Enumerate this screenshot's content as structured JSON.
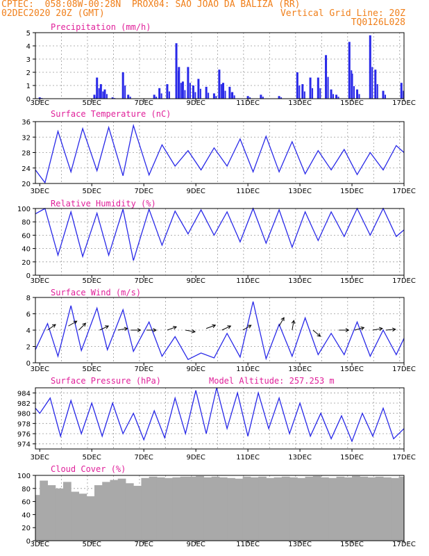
{
  "header": {
    "line1_left": "CPTEC:  058:08W-00:28N  PROX04: SAO JOAO DA BALIZA (RR)",
    "line2_left": "02DEC2020 20Z (GMT)",
    "line2_right": "Vertical Grid Line: 20Z",
    "line3_right": "TQ0126L028"
  },
  "colors": {
    "header": "#f07f1a",
    "title": "#e0209a",
    "line": "#2828e8",
    "cloud": "#a9a9a9"
  },
  "chart_data": [
    {
      "type": "bar",
      "title": "Precipitation (mm/h)",
      "ylim": [
        0,
        5
      ],
      "yticks": [
        0,
        1,
        2,
        3,
        4,
        5
      ],
      "x_ticks": [
        "3DEC",
        "5DEC",
        "7DEC",
        "9DEC",
        "11DEC",
        "13DEC",
        "15DEC",
        "17DEC"
      ],
      "x_range_days": [
        2.833,
        17.0
      ],
      "points": [
        [
          3.0,
          0.1
        ],
        [
          5.1,
          0.3
        ],
        [
          5.2,
          1.6
        ],
        [
          5.35,
          1.1
        ],
        [
          5.5,
          0.7
        ],
        [
          5.8,
          0.1
        ],
        [
          6.2,
          2.0
        ],
        [
          6.4,
          0.3
        ],
        [
          7.4,
          0.3
        ],
        [
          7.6,
          0.8
        ],
        [
          7.9,
          1.1
        ],
        [
          8.25,
          4.2
        ],
        [
          8.35,
          2.4
        ],
        [
          8.5,
          1.3
        ],
        [
          8.7,
          2.4
        ],
        [
          8.9,
          1.0
        ],
        [
          9.1,
          1.5
        ],
        [
          9.4,
          0.9
        ],
        [
          9.7,
          0.4
        ],
        [
          9.9,
          2.2
        ],
        [
          10.05,
          1.2
        ],
        [
          10.3,
          0.9
        ],
        [
          10.4,
          0.5
        ],
        [
          11.0,
          0.2
        ],
        [
          11.5,
          0.3
        ],
        [
          12.2,
          0.2
        ],
        [
          12.9,
          2.0
        ],
        [
          13.1,
          1.1
        ],
        [
          13.4,
          1.6
        ],
        [
          13.7,
          1.6
        ],
        [
          14.0,
          3.3
        ],
        [
          14.2,
          0.7
        ],
        [
          14.4,
          0.3
        ],
        [
          14.9,
          4.3
        ],
        [
          15.0,
          1.9
        ],
        [
          15.2,
          0.7
        ],
        [
          15.7,
          4.8
        ],
        [
          15.9,
          2.2
        ],
        [
          16.2,
          0.6
        ],
        [
          16.9,
          1.2
        ]
      ]
    },
    {
      "type": "line",
      "title": "Surface Temperature (nC)",
      "ylim": [
        20,
        36
      ],
      "yticks": [
        20,
        24,
        28,
        32,
        36
      ],
      "x_ticks": [
        "3DEC",
        "5DEC",
        "7DEC",
        "9DEC",
        "11DEC",
        "13DEC",
        "15DEC",
        "17DEC"
      ],
      "x_range_days": [
        2.833,
        17.0
      ],
      "x": [
        2.833,
        3.2,
        3.7,
        4.2,
        4.65,
        5.2,
        5.65,
        6.2,
        6.6,
        7.2,
        7.7,
        8.2,
        8.7,
        9.2,
        9.7,
        10.2,
        10.7,
        11.2,
        11.7,
        12.2,
        12.7,
        13.2,
        13.7,
        14.2,
        14.7,
        15.2,
        15.7,
        16.2,
        16.7,
        17.0
      ],
      "values": [
        23.5,
        20.2,
        33.5,
        23.0,
        34.2,
        23.3,
        34.5,
        22.0,
        35.0,
        22.2,
        30.0,
        24.5,
        28.5,
        23.5,
        29.2,
        24.5,
        31.5,
        23.0,
        32.2,
        23.0,
        30.8,
        22.5,
        28.5,
        23.5,
        28.8,
        22.3,
        28.0,
        23.5,
        29.8,
        28.0
      ]
    },
    {
      "type": "line",
      "title": "Relative Humidity (%)",
      "ylim": [
        0,
        100
      ],
      "yticks": [
        0,
        20,
        40,
        60,
        80,
        100
      ],
      "x_ticks": [
        "3DEC",
        "5DEC",
        "7DEC",
        "9DEC",
        "11DEC",
        "13DEC",
        "15DEC",
        "17DEC"
      ],
      "x_range_days": [
        2.833,
        17.0
      ],
      "x": [
        2.833,
        3.2,
        3.7,
        4.2,
        4.65,
        5.2,
        5.65,
        6.2,
        6.6,
        7.2,
        7.7,
        8.2,
        8.7,
        9.2,
        9.7,
        10.2,
        10.7,
        11.2,
        11.7,
        12.2,
        12.7,
        13.2,
        13.7,
        14.2,
        14.7,
        15.2,
        15.7,
        16.2,
        16.7,
        17.0
      ],
      "values": [
        92,
        100,
        30,
        95,
        28,
        93,
        30,
        99,
        22,
        99,
        45,
        96,
        62,
        98,
        60,
        95,
        50,
        100,
        48,
        98,
        42,
        95,
        52,
        95,
        58,
        100,
        60,
        100,
        58,
        68
      ]
    },
    {
      "type": "line",
      "title": "Surface Wind (m/s)",
      "ylim": [
        0,
        8
      ],
      "yticks": [
        0,
        2,
        4,
        6,
        8
      ],
      "x_ticks": [
        "3DEC",
        "5DEC",
        "7DEC",
        "9DEC",
        "11DEC",
        "13DEC",
        "15DEC",
        "17DEC"
      ],
      "x_range_days": [
        2.833,
        17.0
      ],
      "x": [
        2.833,
        3.3,
        3.7,
        4.2,
        4.6,
        5.2,
        5.6,
        6.2,
        6.6,
        7.2,
        7.7,
        8.2,
        8.7,
        9.2,
        9.7,
        10.2,
        10.7,
        11.2,
        11.7,
        12.2,
        12.7,
        13.2,
        13.7,
        14.2,
        14.7,
        15.2,
        15.7,
        16.2,
        16.7,
        17.0
      ],
      "values": [
        1.6,
        4.8,
        0.8,
        7.0,
        1.5,
        6.7,
        1.6,
        6.5,
        1.4,
        5.0,
        0.8,
        3.2,
        0.4,
        1.2,
        0.6,
        3.6,
        0.7,
        7.5,
        0.5,
        4.7,
        0.8,
        5.5,
        1.0,
        3.6,
        1.0,
        5.0,
        0.8,
        4.0,
        1.0,
        3.0
      ]
    },
    {
      "type": "line",
      "title": "Surface Pressure (hPa)",
      "annotation": "Model Altitude: 257.253 m",
      "ylim": [
        973,
        985
      ],
      "yticks": [
        974,
        976,
        978,
        980,
        982,
        984
      ],
      "x_ticks": [
        "3DEC",
        "5DEC",
        "7DEC",
        "9DEC",
        "11DEC",
        "13DEC",
        "15DEC",
        "17DEC"
      ],
      "x_range_days": [
        2.833,
        17.0
      ],
      "x": [
        2.833,
        3.0,
        3.4,
        3.8,
        4.2,
        4.6,
        5.0,
        5.4,
        5.8,
        6.2,
        6.6,
        7.0,
        7.4,
        7.8,
        8.2,
        8.6,
        9.0,
        9.4,
        9.8,
        10.2,
        10.6,
        11.0,
        11.4,
        11.8,
        12.2,
        12.6,
        13.0,
        13.4,
        13.8,
        14.2,
        14.6,
        15.0,
        15.4,
        15.8,
        16.2,
        16.6,
        17.0
      ],
      "values": [
        981,
        980,
        983,
        975.5,
        982.5,
        976,
        982,
        975.5,
        982,
        976,
        980,
        974.8,
        980.5,
        975.2,
        983,
        976,
        984.5,
        976,
        985,
        977,
        984,
        975.5,
        984,
        977,
        983,
        976,
        982,
        975.5,
        980,
        975,
        979.5,
        974.5,
        980,
        975.5,
        981,
        975,
        977
      ]
    },
    {
      "type": "bar",
      "title": "Cloud Cover (%)",
      "ylim": [
        0,
        100
      ],
      "yticks": [
        0,
        20,
        40,
        60,
        80,
        100
      ],
      "x_ticks": [
        "3DEC",
        "5DEC",
        "7DEC",
        "9DEC",
        "11DEC",
        "13DEC",
        "15DEC",
        "17DEC"
      ],
      "x_range_days": [
        2.833,
        17.0
      ],
      "x": [
        2.833,
        3.0,
        3.3,
        3.6,
        3.9,
        4.2,
        4.5,
        4.8,
        5.1,
        5.4,
        5.7,
        6.0,
        6.3,
        6.6,
        6.9,
        7.2,
        7.5,
        7.8,
        8.1,
        8.4,
        8.7,
        9.0,
        9.3,
        9.6,
        9.9,
        10.2,
        10.5,
        10.8,
        11.1,
        11.4,
        11.7,
        12.0,
        12.3,
        12.6,
        12.9,
        13.2,
        13.5,
        13.8,
        14.1,
        14.4,
        14.7,
        15.0,
        15.3,
        15.6,
        15.9,
        16.2,
        16.5,
        16.8,
        17.0
      ],
      "values": [
        70,
        92,
        85,
        80,
        90,
        75,
        72,
        68,
        85,
        90,
        93,
        95,
        88,
        84,
        96,
        98,
        97,
        96,
        97,
        98,
        98,
        99,
        97,
        98,
        97,
        96,
        95,
        98,
        97,
        98,
        96,
        97,
        98,
        97,
        96,
        98,
        99,
        97,
        96,
        98,
        97,
        99,
        98,
        97,
        98,
        97,
        96,
        98,
        97
      ]
    }
  ]
}
